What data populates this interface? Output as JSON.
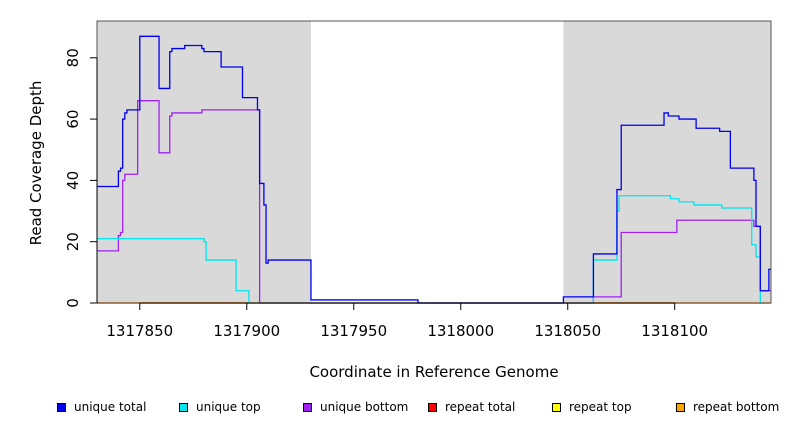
{
  "chart_data": {
    "type": "line",
    "title": "",
    "xlabel": "Coordinate in Reference Genome",
    "ylabel": "Read Coverage Depth",
    "xlim": [
      1317830,
      1318145
    ],
    "ylim": [
      0,
      92
    ],
    "xticks": [
      1317850,
      1317900,
      1317950,
      1318000,
      1318050,
      1318100
    ],
    "xtick_labels": [
      "1317850",
      "1317900",
      "1317950",
      "1318000",
      "1318050",
      "1318100"
    ],
    "yticks": [
      0,
      20,
      40,
      60,
      80
    ],
    "ytick_labels": [
      "0",
      "20",
      "40",
      "60",
      "80"
    ],
    "grid": false,
    "legend_position": "bottom",
    "shaded_regions": [
      {
        "x_start": 1317830,
        "x_end": 1317930,
        "color": "#d9d9d9"
      },
      {
        "x_start": 1318048,
        "x_end": 1318145,
        "color": "#d9d9d9"
      }
    ],
    "series": [
      {
        "name": "unique total",
        "color": "#0000ee",
        "step": true,
        "x": [
          1317830,
          1317840,
          1317841,
          1317842,
          1317843,
          1317844,
          1317850,
          1317859,
          1317864,
          1317865,
          1317867,
          1317871,
          1317879,
          1317880,
          1317888,
          1317892,
          1317898,
          1317905,
          1317906,
          1317908,
          1317909,
          1317910,
          1317930,
          1317980,
          1318048,
          1318062,
          1318073,
          1318074,
          1318075,
          1318095,
          1318097,
          1318100,
          1318102,
          1318107,
          1318110,
          1318118,
          1318121,
          1318126,
          1318136,
          1318137,
          1318138,
          1318140,
          1318144
        ],
        "y": [
          38,
          43,
          44,
          60,
          62,
          63,
          87,
          70,
          82,
          83,
          83,
          84,
          83,
          82,
          77,
          77,
          67,
          63,
          39,
          32,
          13,
          14,
          1,
          0,
          2,
          16,
          37,
          37,
          58,
          62,
          61,
          61,
          60,
          60,
          57,
          57,
          56,
          44,
          44,
          40,
          25,
          4,
          11
        ]
      },
      {
        "name": "unique top",
        "color": "#00e5ee",
        "step": true,
        "x": [
          1317830,
          1317880,
          1317881,
          1317888,
          1317895,
          1317901,
          1317930,
          1318048,
          1318062,
          1318072,
          1318073,
          1318074,
          1318075,
          1318095,
          1318098,
          1318102,
          1318109,
          1318118,
          1318122,
          1318136,
          1318138,
          1318140
        ],
        "y": [
          21,
          20,
          14,
          14,
          4,
          0,
          0,
          0,
          14,
          14,
          30,
          35,
          35,
          35,
          34,
          33,
          32,
          32,
          31,
          19,
          15,
          0
        ],
        "end_x": 1318142
      },
      {
        "name": "unique bottom",
        "color": "#a020f0",
        "step": true,
        "x": [
          1317830,
          1317840,
          1317841,
          1317842,
          1317843,
          1317849,
          1317859,
          1317864,
          1317865,
          1317867,
          1317879,
          1317905,
          1317906,
          1317930,
          1318048,
          1318062,
          1318073,
          1318075,
          1318094,
          1318101,
          1318104,
          1318137,
          1318140
        ],
        "y": [
          17,
          22,
          23,
          40,
          42,
          66,
          49,
          61,
          62,
          62,
          63,
          63,
          0,
          0,
          0,
          2,
          2,
          23,
          23,
          27,
          27,
          25,
          4
        ]
      },
      {
        "name": "repeat total",
        "color": "#ff0000",
        "step": true,
        "x": [
          1317830,
          1318145
        ],
        "y": [
          0,
          0
        ]
      },
      {
        "name": "repeat top",
        "color": "#ffff00",
        "step": true,
        "x": [
          1317830,
          1318145
        ],
        "y": [
          0,
          0
        ]
      },
      {
        "name": "repeat bottom",
        "color": "#ffa500",
        "step": true,
        "x": [
          1317830,
          1318145
        ],
        "y": [
          0,
          0
        ]
      }
    ]
  }
}
